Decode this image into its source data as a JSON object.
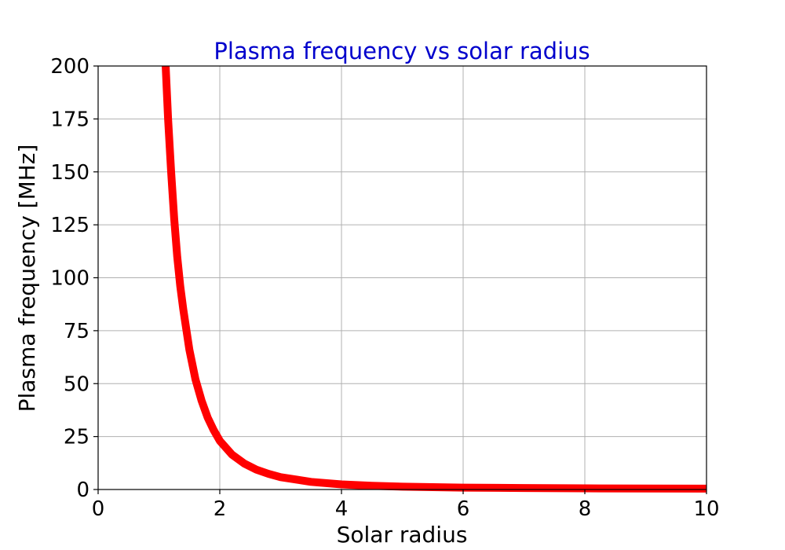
{
  "chart_data": {
    "type": "line",
    "title": "Plasma frequency vs solar radius",
    "xlabel": "Solar radius",
    "ylabel": "Plasma frequency [MHz]",
    "xlim": [
      0,
      10
    ],
    "ylim": [
      0,
      200
    ],
    "x_ticks": [
      "0",
      "2",
      "4",
      "6",
      "8",
      "10"
    ],
    "y_ticks": [
      "0",
      "25",
      "50",
      "75",
      "100",
      "125",
      "150",
      "175",
      "200"
    ],
    "grid": true,
    "legend": "none",
    "series": [
      {
        "color": "#ff0000",
        "x": [
          1.11,
          1.15,
          1.2,
          1.25,
          1.3,
          1.35,
          1.4,
          1.5,
          1.6,
          1.7,
          1.8,
          1.9,
          2.0,
          2.2,
          2.4,
          2.6,
          2.8,
          3.0,
          3.5,
          4.0,
          4.5,
          5.0,
          6.0,
          7.0,
          8.0,
          9.0,
          10.0
        ],
        "y": [
          200,
          175,
          150,
          128,
          110,
          96,
          85,
          66,
          52,
          42,
          34,
          28,
          23,
          16.5,
          12.3,
          9.4,
          7.4,
          5.8,
          3.6,
          2.4,
          1.75,
          1.35,
          0.9,
          0.7,
          0.55,
          0.45,
          0.4
        ]
      }
    ],
    "colors": {
      "title": "#0000cc",
      "grid": "#b0b0b0",
      "line": "#ff0000"
    }
  }
}
